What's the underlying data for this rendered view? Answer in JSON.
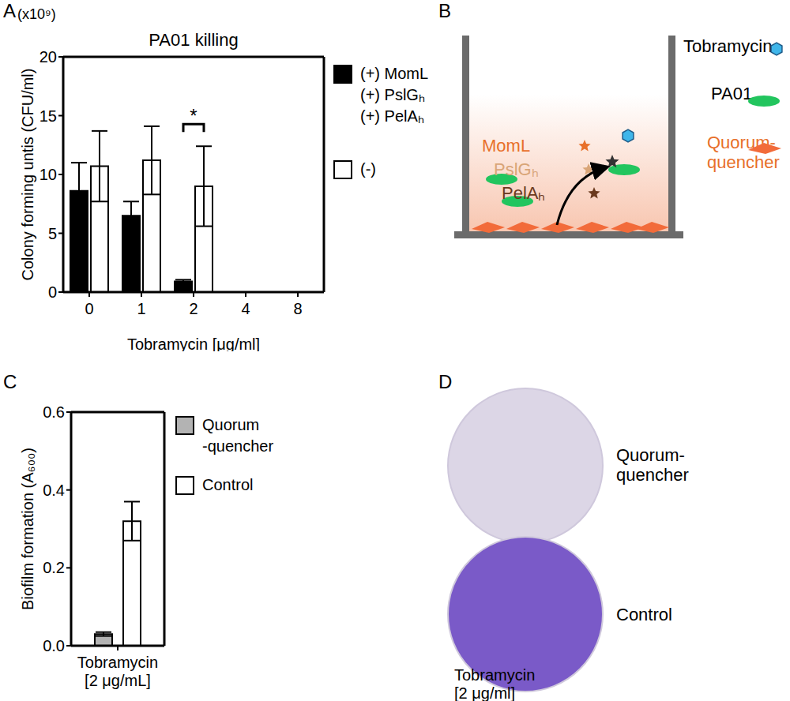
{
  "chart_data": [
    {
      "panel": "A",
      "type": "bar",
      "title": "PA01 killing",
      "x_label": "Tobramycin [μg/ml]",
      "y_label": "Colony forming untis (CFU/ml)",
      "y_scale_label": "(x10⁹)",
      "categories": [
        "0",
        "1",
        "2",
        "4",
        "8"
      ],
      "ylim": [
        0,
        20
      ],
      "yticks": [
        0,
        5,
        10,
        15,
        20
      ],
      "series": [
        {
          "name": "(+) MomL\n(+) PslGₕ\n(+) PelAₕ",
          "color": "#000000",
          "values": [
            8.6,
            6.5,
            0.9,
            0,
            0
          ],
          "errors": [
            2.4,
            1.2,
            0.15,
            0,
            0
          ]
        },
        {
          "name": "(-)",
          "color": "#ffffff",
          "values": [
            10.7,
            11.2,
            9.0,
            0,
            0
          ],
          "errors": [
            3.0,
            2.9,
            3.4,
            0,
            0
          ]
        }
      ],
      "significance": {
        "category": "2",
        "label": "*"
      }
    },
    {
      "panel": "C",
      "type": "bar",
      "y_label": "Biofilm formation (A₆₀₀)",
      "categories": [
        "Tobramycin\n[2 μg/mL]"
      ],
      "ylim": [
        0,
        0.6
      ],
      "yticks": [
        {
          "value": 0,
          "label": "0.0"
        },
        0.2,
        0.4,
        0.6
      ],
      "series": [
        {
          "name": "Quorum\n-quencher",
          "color": "#b3b3b3",
          "values": [
            0.03
          ],
          "errors": [
            0.005
          ]
        },
        {
          "name": "Control",
          "color": "#ffffff",
          "values": [
            0.32
          ],
          "errors": [
            0.05
          ]
        }
      ]
    }
  ],
  "diagram": {
    "panel": "B",
    "labels": {
      "tobramycin": "Tobramycin",
      "bacteria": "PA01",
      "quencher": "Quorum-\nquencher",
      "enzymes": [
        {
          "label": "MomL",
          "color": "#e8702a"
        },
        {
          "label": "PslGₕ",
          "color": "#d9a577"
        },
        {
          "label": "PelAₕ",
          "color": "#6b3a1e"
        }
      ]
    }
  },
  "photos": {
    "panel": "D",
    "items": [
      {
        "label": "Quorum-\nquencher",
        "color": "#dcd6e6"
      },
      {
        "label": "Control",
        "color": "#7a5ac8"
      }
    ],
    "caption": "Tobramycin\n[2 μg/ml]"
  }
}
